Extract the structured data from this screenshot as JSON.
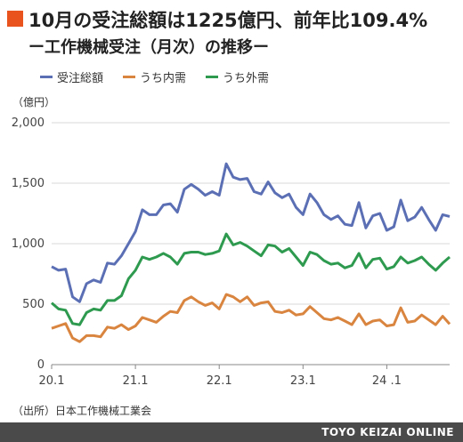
{
  "chart_data": {
    "type": "line",
    "title": "10月の受注総額は1225億円、前年比109.4%",
    "subtitle": "ー工作機械受注（月次）の推移ー",
    "unit": "（億円）",
    "ylim": [
      0,
      2000
    ],
    "y_ticks": [
      "0",
      "500",
      "1,000",
      "1,500",
      "2,000"
    ],
    "x_ticks": [
      {
        "label": "20.1",
        "index": 0
      },
      {
        "label": "21.1",
        "index": 12
      },
      {
        "label": "22.1",
        "index": 24
      },
      {
        "label": "23.1",
        "index": 36
      },
      {
        "label": "24 .1",
        "index": 48
      }
    ],
    "grid": true,
    "legend_position": "top",
    "series": [
      {
        "name": "受注総額",
        "color": "#5b6fb5",
        "values": [
          810,
          780,
          790,
          560,
          520,
          670,
          700,
          680,
          840,
          830,
          900,
          1000,
          1100,
          1280,
          1240,
          1240,
          1320,
          1330,
          1260,
          1450,
          1490,
          1450,
          1400,
          1430,
          1400,
          1660,
          1550,
          1530,
          1540,
          1430,
          1410,
          1510,
          1420,
          1380,
          1410,
          1300,
          1240,
          1410,
          1340,
          1240,
          1200,
          1230,
          1160,
          1150,
          1340,
          1130,
          1230,
          1250,
          1110,
          1140,
          1360,
          1190,
          1220,
          1300,
          1200,
          1110,
          1240,
          1225
        ]
      },
      {
        "name": "うち内需",
        "color": "#d9843f",
        "values": [
          300,
          320,
          340,
          220,
          190,
          240,
          240,
          230,
          310,
          300,
          330,
          290,
          320,
          390,
          370,
          350,
          400,
          440,
          430,
          530,
          560,
          520,
          490,
          510,
          460,
          580,
          560,
          520,
          560,
          490,
          510,
          520,
          440,
          430,
          450,
          410,
          420,
          480,
          430,
          380,
          370,
          390,
          360,
          330,
          420,
          330,
          360,
          370,
          320,
          330,
          470,
          350,
          360,
          410,
          370,
          330,
          400,
          335
        ]
      },
      {
        "name": "うち外需",
        "color": "#2e9a4f",
        "values": [
          510,
          460,
          450,
          340,
          330,
          430,
          460,
          450,
          530,
          530,
          570,
          710,
          780,
          890,
          870,
          890,
          920,
          890,
          830,
          920,
          930,
          930,
          910,
          920,
          940,
          1080,
          990,
          1010,
          980,
          940,
          900,
          990,
          980,
          930,
          960,
          890,
          820,
          930,
          910,
          860,
          830,
          840,
          800,
          820,
          920,
          800,
          870,
          880,
          790,
          810,
          890,
          840,
          860,
          890,
          830,
          780,
          840,
          890
        ]
      }
    ]
  },
  "source": "（出所）日本工作機械工業会",
  "brand": "TOYO KEIZAI ONLINE"
}
